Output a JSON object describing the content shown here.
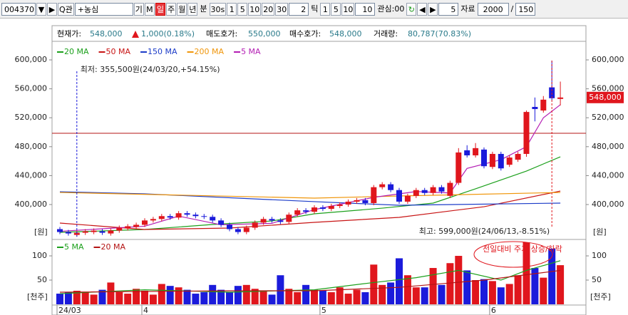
{
  "toolbar": {
    "items": [
      {
        "text": "004370",
        "kind": "input"
      },
      {
        "text": "▼",
        "kind": "button"
      },
      {
        "text": "▶",
        "kind": "button"
      },
      {
        "text": "Q관",
        "kind": "button"
      },
      {
        "text": "+농심",
        "kind": "wide-input"
      },
      {
        "text": "기",
        "kind": "button"
      },
      {
        "text": "M",
        "kind": "button"
      },
      {
        "text": "일",
        "kind": "selected"
      },
      {
        "text": "주",
        "kind": "button"
      },
      {
        "text": "월",
        "kind": "button"
      },
      {
        "text": "년",
        "kind": "button"
      },
      {
        "text": "분",
        "kind": "label"
      },
      {
        "text": "30s",
        "kind": "button"
      },
      {
        "text": "1",
        "kind": "button"
      },
      {
        "text": "5",
        "kind": "button"
      },
      {
        "text": "10",
        "kind": "button"
      },
      {
        "text": "20",
        "kind": "button"
      },
      {
        "text": "30",
        "kind": "button"
      },
      {
        "text": "2",
        "kind": "num-input"
      },
      {
        "text": "틱",
        "kind": "label"
      },
      {
        "text": "1",
        "kind": "button"
      },
      {
        "text": "5",
        "kind": "button"
      },
      {
        "text": "10",
        "kind": "button"
      },
      {
        "text": "10",
        "kind": "num-input"
      },
      {
        "text": "관심:00",
        "kind": "label"
      },
      {
        "text": "↻",
        "kind": "icon"
      },
      {
        "text": "◀",
        "kind": "button"
      },
      {
        "text": "▶",
        "kind": "button"
      },
      {
        "text": "5",
        "kind": "num-input"
      },
      {
        "text": "자료",
        "kind": "label"
      },
      {
        "text": "2000",
        "kind": "select"
      },
      {
        "text": "/",
        "kind": "label"
      },
      {
        "text": "150",
        "kind": "num-input"
      }
    ]
  },
  "info_bar": {
    "price_label": "현재가:",
    "price": "548,000",
    "change": "1,000(0.18%)",
    "ask_label": "매도호가:",
    "ask": "550,000",
    "bid_label": "매수호가:",
    "bid": "548,000",
    "volume_label": "거래량:",
    "volume": "80,787(70.83%)"
  },
  "chart_data": [
    {
      "type": "candlestick",
      "up_color": "#e0161d",
      "down_color": "#1b1bdb",
      "open": [
        366000,
        362000,
        358000,
        361000,
        362000,
        363000,
        360000,
        364000,
        367000,
        369000,
        372000,
        378000,
        380000,
        384000,
        382000,
        388000,
        386000,
        384000,
        383000,
        378000,
        372000,
        366000,
        362000,
        368000,
        375000,
        380000,
        378000,
        376000,
        386000,
        392000,
        390000,
        396000,
        394000,
        398000,
        400000,
        404000,
        406000,
        402000,
        424000,
        428000,
        420000,
        404000,
        412000,
        420000,
        416000,
        424000,
        412000,
        430000,
        475000,
        468000,
        476000,
        452000,
        470000,
        455000,
        462000,
        470000,
        535000,
        530000,
        562000,
        546000
      ],
      "high": [
        369000,
        365000,
        364000,
        366000,
        367000,
        366000,
        367000,
        371000,
        373000,
        375000,
        381000,
        383000,
        387000,
        387000,
        391000,
        391000,
        389000,
        387000,
        386000,
        381000,
        375000,
        369000,
        371000,
        378000,
        383000,
        383000,
        381000,
        389000,
        395000,
        395000,
        399000,
        399000,
        401000,
        403000,
        407000,
        409000,
        409000,
        427000,
        431000,
        431000,
        423000,
        415000,
        423000,
        423000,
        427000,
        427000,
        433000,
        478000,
        482000,
        485000,
        479000,
        473000,
        473000,
        468000,
        473000,
        530000,
        548000,
        550000,
        599000,
        570000
      ],
      "low": [
        359000,
        357000,
        355500,
        358000,
        359000,
        358000,
        357000,
        361000,
        364000,
        366000,
        369000,
        375000,
        377000,
        379000,
        379000,
        383000,
        381000,
        380000,
        375000,
        369000,
        363000,
        359000,
        359000,
        365000,
        372000,
        375000,
        373000,
        373000,
        383000,
        387000,
        387000,
        391000,
        391000,
        395000,
        397000,
        401000,
        399000,
        399000,
        421000,
        417000,
        401000,
        401000,
        409000,
        413000,
        413000,
        415000,
        409000,
        427000,
        465000,
        465000,
        450000,
        449000,
        447000,
        452000,
        459000,
        466000,
        515000,
        527000,
        544000,
        537000
      ],
      "close": [
        362000,
        360000,
        361000,
        363000,
        364000,
        361000,
        364000,
        368000,
        370000,
        372000,
        378000,
        380000,
        384000,
        382000,
        388000,
        386000,
        384000,
        383000,
        378000,
        372000,
        366000,
        362000,
        368000,
        375000,
        380000,
        378000,
        376000,
        386000,
        392000,
        390000,
        396000,
        394000,
        398000,
        400000,
        404000,
        406000,
        402000,
        424000,
        428000,
        420000,
        404000,
        412000,
        420000,
        416000,
        424000,
        418000,
        430000,
        472000,
        468000,
        478000,
        453000,
        470000,
        450000,
        465000,
        470000,
        528000,
        532000,
        545000,
        547000,
        548000
      ],
      "ylim": [
        353700,
        621700
      ],
      "yticks": [
        {
          "value": 400000,
          "label": "400,000"
        },
        {
          "value": 440000,
          "label": "440,000"
        },
        {
          "value": 480000,
          "label": "480,000"
        },
        {
          "value": 520000,
          "label": "520,000"
        },
        {
          "value": 560000,
          "label": "560,000"
        },
        {
          "value": 600000,
          "label": "600,000"
        }
      ],
      "unit_label": "[원]",
      "moving_averages": [
        {
          "name": "20 MA",
          "color": "#1ca01c",
          "x": [
            0,
            10,
            18,
            25,
            30,
            38,
            44,
            49,
            55,
            59
          ],
          "values": [
            361600,
            365500,
            372400,
            377300,
            387200,
            395000,
            402000,
            421700,
            446300,
            466000
          ]
        },
        {
          "name": "50 MA",
          "color": "#c81414",
          "x": [
            0,
            10,
            20,
            30,
            40,
            50,
            59
          ],
          "values": [
            374400,
            365500,
            367500,
            375400,
            382300,
            397000,
            418700
          ]
        },
        {
          "name": "150 MA",
          "color": "#1c3cc8",
          "x": [
            0,
            10,
            30,
            40,
            59
          ],
          "values": [
            417700,
            414800,
            404000,
            399000,
            402000
          ]
        },
        {
          "name": "200 MA",
          "color": "#f0960a",
          "x": [
            0,
            30,
            40,
            59
          ],
          "values": [
            416700,
            408900,
            411800,
            416700
          ]
        },
        {
          "name": "5 MA",
          "color": "#b41eb4",
          "x": [
            0,
            10,
            14,
            19,
            25,
            30,
            37,
            42,
            46,
            48,
            52,
            55,
            57,
            59
          ],
          "values": [
            363000,
            370000,
            384000,
            372000,
            374000,
            393000,
            410000,
            418000,
            416000,
            450000,
            462000,
            480000,
            520000,
            538000
          ]
        }
      ],
      "reference_line": 498500,
      "reference_color": "#b41414",
      "low_index": 2,
      "high_index": 58,
      "low_text": "최저: 355,500원(24/03/20,+54.15%)",
      "high_text": "최고: 599,000원(24/06/13,-8.51%)",
      "last_price_label": "548,000"
    },
    {
      "type": "bar",
      "values": [
        22,
        25,
        28,
        25,
        20,
        30,
        45,
        25,
        22,
        32,
        28,
        20,
        42,
        38,
        35,
        30,
        22,
        25,
        40,
        30,
        25,
        38,
        40,
        32,
        28,
        20,
        60,
        32,
        25,
        40,
        30,
        28,
        25,
        35,
        22,
        30,
        25,
        82,
        40,
        45,
        95,
        60,
        35,
        35,
        75,
        40,
        85,
        100,
        70,
        50,
        52,
        48,
        35,
        42,
        60,
        128,
        75,
        55,
        115,
        80.787
      ],
      "ylim": [
        0,
        128
      ],
      "yticks": [
        50,
        100
      ],
      "unit_label": "[천주]",
      "moving_averages": [
        {
          "name": "5 MA",
          "color": "#1ca01c",
          "x": [
            0,
            10,
            20,
            30,
            37,
            42,
            47,
            52,
            55,
            59
          ],
          "values": [
            22,
            30,
            25,
            30,
            45,
            55,
            70,
            50,
            70,
            90
          ]
        },
        {
          "name": "20 MA",
          "color": "#b41414",
          "x": [
            0,
            20,
            30,
            40,
            50,
            59
          ],
          "values": [
            25,
            28,
            28,
            35,
            50,
            70
          ]
        }
      ],
      "annotation": "전일대비 주가 상승/하락",
      "x_labels": [
        {
          "index": 0,
          "label": "24/03"
        },
        {
          "index": 10,
          "label": "4"
        },
        {
          "index": 31,
          "label": "5"
        },
        {
          "index": 51,
          "label": "6"
        }
      ]
    }
  ]
}
